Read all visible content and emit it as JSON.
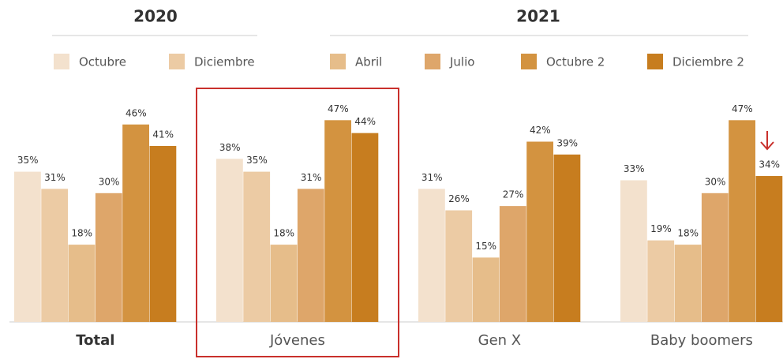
{
  "chart_data": {
    "type": "bar",
    "year_labels": [
      "2020",
      "2021"
    ],
    "categories": [
      "Total",
      "Jóvenes",
      "Gen X",
      "Baby boomers"
    ],
    "series": [
      {
        "name": "Octubre",
        "color": "#f3e1cd",
        "values": [
          35,
          38,
          31,
          33
        ],
        "value_labels": [
          "35%",
          "38%",
          "31%",
          "33%"
        ]
      },
      {
        "name": "Diciembre",
        "color": "#eccba4",
        "values": [
          31,
          35,
          26,
          19
        ],
        "value_labels": [
          "31%",
          "35%",
          "26%",
          "19%"
        ]
      },
      {
        "name": "Abril",
        "color": "#e6bd8a",
        "values": [
          18,
          18,
          15,
          18
        ],
        "value_labels": [
          "18%",
          "18%",
          "15%",
          "18%"
        ]
      },
      {
        "name": "Julio",
        "color": "#dea66a",
        "values": [
          30,
          31,
          27,
          30
        ],
        "value_labels": [
          "30%",
          "31%",
          "27%",
          "30%"
        ]
      },
      {
        "name": "Octubre 2",
        "color": "#d39340",
        "values": [
          46,
          47,
          42,
          47
        ],
        "value_labels": [
          "46%",
          "47%",
          "42%",
          "47%"
        ]
      },
      {
        "name": "Diciembre 2",
        "color": "#c77d1f",
        "values": [
          41,
          44,
          39,
          34
        ],
        "value_labels": [
          "41%",
          "44%",
          "39%",
          "34%"
        ]
      }
    ],
    "ylim": [
      0,
      50
    ]
  }
}
